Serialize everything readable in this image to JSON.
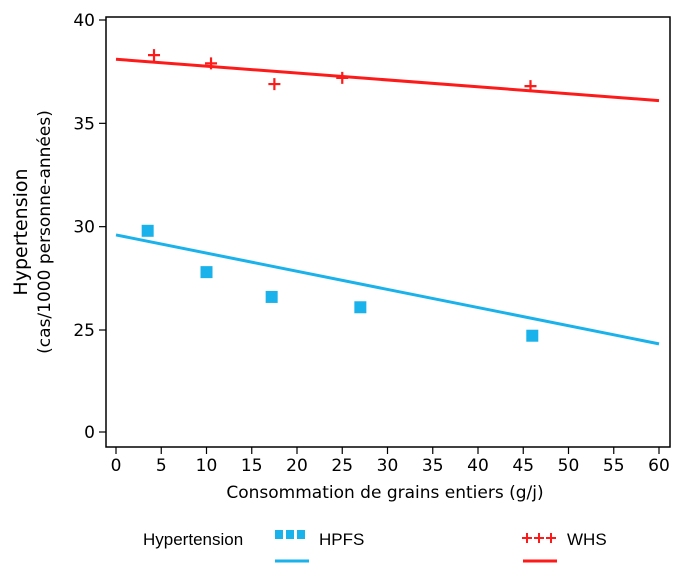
{
  "chart_data": {
    "type": "scatter",
    "title": "",
    "xlabel": "Consommation de grains entiers (g/j)",
    "ylabel": "Hypertension",
    "ylabel_sub": "(cas/1000 personne-années)",
    "xlim": [
      0,
      60
    ],
    "ylim": [
      0,
      40
    ],
    "x_ticks": [
      0,
      5,
      10,
      15,
      20,
      25,
      30,
      35,
      40,
      45,
      50,
      55,
      60
    ],
    "y_ticks": [
      0,
      25,
      30,
      35,
      40
    ],
    "y_axis_break": true,
    "grid": false,
    "legend_placement": "bottom",
    "legend_title": "Hypertension",
    "series": [
      {
        "name": "HPFS",
        "marker": "square",
        "color": "#1ab2ea",
        "points": [
          {
            "x": 3.5,
            "y": 29.8
          },
          {
            "x": 10.0,
            "y": 27.8
          },
          {
            "x": 17.2,
            "y": 26.6
          },
          {
            "x": 27.0,
            "y": 26.1
          },
          {
            "x": 46.0,
            "y": 23.6
          }
        ],
        "trendline": {
          "x": [
            0,
            60
          ],
          "y": [
            29.6,
            21.6
          ]
        }
      },
      {
        "name": "WHS",
        "marker": "plus",
        "color": "#ff1a1a",
        "points": [
          {
            "x": 4.2,
            "y": 38.3
          },
          {
            "x": 10.5,
            "y": 37.9
          },
          {
            "x": 17.5,
            "y": 36.9
          },
          {
            "x": 25.0,
            "y": 37.2
          },
          {
            "x": 45.8,
            "y": 36.8
          }
        ],
        "trendline": {
          "x": [
            0,
            60
          ],
          "y": [
            38.1,
            36.1
          ]
        }
      }
    ]
  }
}
